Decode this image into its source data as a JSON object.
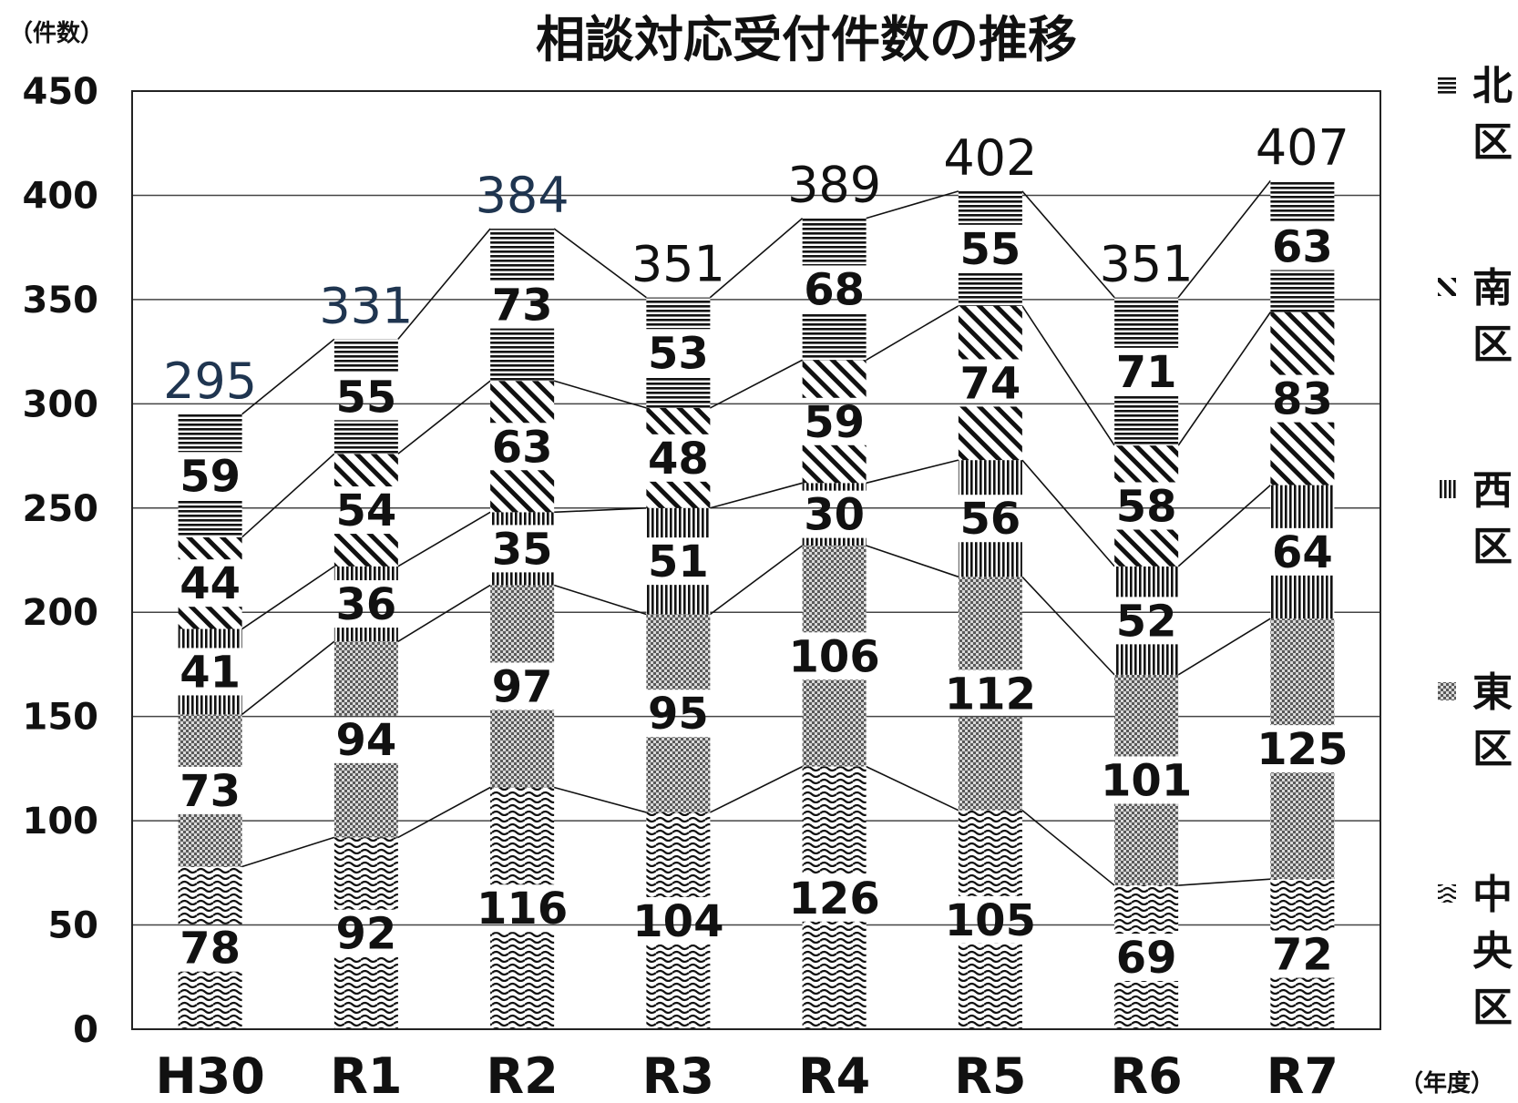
{
  "chart_data": {
    "type": "bar",
    "stacked": true,
    "title": "相談対応受付件数の推移",
    "ylabel": "（件数）",
    "xlabel": "（年度）",
    "ylim": [
      0,
      450
    ],
    "yticks": [
      0,
      50,
      100,
      150,
      200,
      250,
      300,
      350,
      400,
      450
    ],
    "grid": true,
    "legend_position": "right",
    "categories": [
      "H30",
      "R1",
      "R2",
      "R3",
      "R4",
      "R5",
      "R6",
      "R7"
    ],
    "series": [
      {
        "name": "中央区",
        "pattern": "wave",
        "values": [
          78,
          92,
          116,
          104,
          126,
          105,
          69,
          72
        ]
      },
      {
        "name": "東区",
        "pattern": "checker",
        "values": [
          73,
          94,
          97,
          95,
          106,
          112,
          101,
          125
        ]
      },
      {
        "name": "西区",
        "pattern": "vertical",
        "values": [
          41,
          36,
          35,
          51,
          30,
          56,
          52,
          64
        ]
      },
      {
        "name": "南区",
        "pattern": "diagonal",
        "values": [
          44,
          54,
          63,
          48,
          59,
          74,
          58,
          83
        ]
      },
      {
        "name": "北区",
        "pattern": "horizontal",
        "values": [
          59,
          55,
          73,
          53,
          68,
          55,
          71,
          63
        ]
      }
    ],
    "totals": [
      295,
      331,
      384,
      351,
      389,
      402,
      351,
      407
    ],
    "total_label_colors": [
      "#1f3550",
      "#1f3550",
      "#1f3550",
      "#111111",
      "#111111",
      "#111111",
      "#111111",
      "#111111"
    ]
  }
}
